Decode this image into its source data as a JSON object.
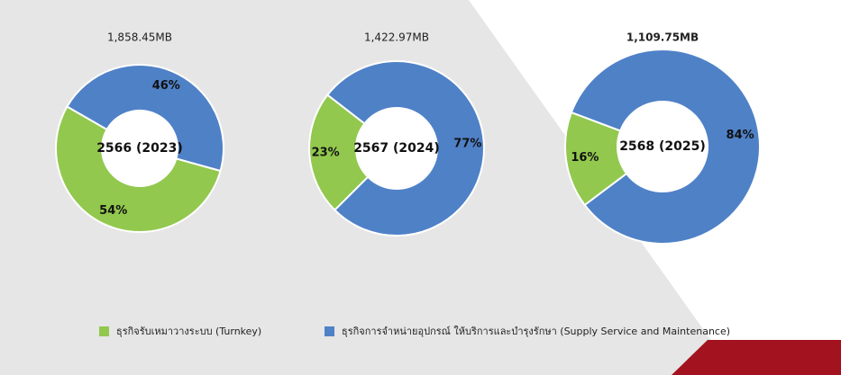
{
  "legend": {
    "items": [
      {
        "name": "ธุรกิจรับเหมาวางระบบ (Turnkey)",
        "color": "#92c84e"
      },
      {
        "name": "ธุรกิจการจำหน่ายอุปกรณ์ ให้บริการและบำรุงรักษา (Supply Service and Maintenance)",
        "color": "#4f81c7"
      }
    ]
  },
  "chart_data": [
    {
      "type": "pie",
      "title": "1,858.45MB",
      "center_label": "2566 (2023)",
      "values": [
        54,
        46
      ],
      "value_labels": [
        "54%",
        "46%"
      ],
      "text_color": "#111111"
    },
    {
      "type": "pie",
      "title": "1,422.97MB",
      "center_label": "2567 (2024)",
      "values": [
        23,
        77
      ],
      "value_labels": [
        "23%",
        "77%"
      ],
      "text_color": "#111111"
    },
    {
      "type": "pie",
      "title": "1,109.75MB",
      "center_label": "2568 (2025)",
      "values": [
        16,
        84
      ],
      "value_labels": [
        "16%",
        "84%"
      ],
      "text_color": "#1a1acc"
    }
  ]
}
